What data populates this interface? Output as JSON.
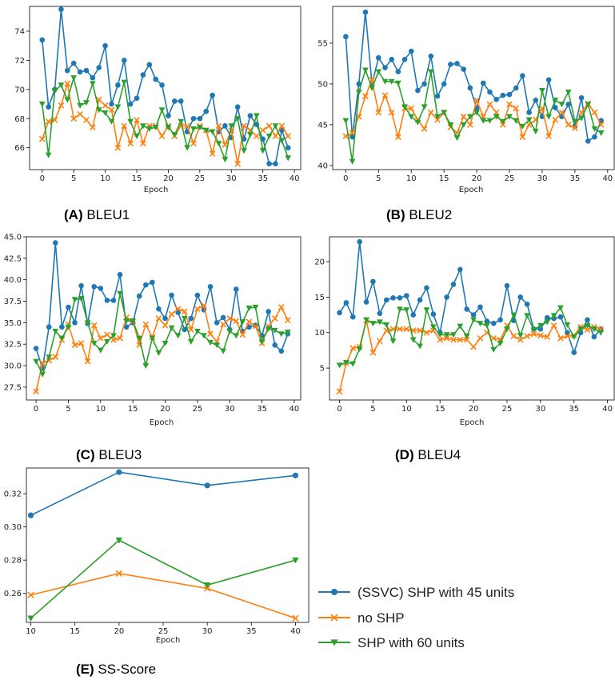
{
  "colors": {
    "ssvc": "#1f77b4",
    "noshp": "#ff7f0e",
    "shp60": "#2ca02c"
  },
  "legend": [
    {
      "label": "(SSVC) SHP with 45 units",
      "color": "#1f77b4",
      "marker": "circle"
    },
    {
      "label": "no SHP",
      "color": "#ff7f0e",
      "marker": "x"
    },
    {
      "label": "SHP with 60 units",
      "color": "#2ca02c",
      "marker": "triangle-down"
    }
  ],
  "chart_data": [
    {
      "type": "line",
      "panel": "(A)",
      "caption": "BLEU1",
      "xlabel": "Epoch",
      "ylabel": "",
      "xlim": [
        -2,
        41
      ],
      "ylim": [
        64.5,
        75.7
      ],
      "xticks": [
        0,
        5,
        10,
        15,
        20,
        25,
        30,
        35,
        40
      ],
      "yticks": [
        66,
        68,
        70,
        72,
        74
      ],
      "x": [
        0,
        1,
        2,
        3,
        4,
        5,
        6,
        7,
        8,
        9,
        10,
        11,
        12,
        13,
        14,
        15,
        16,
        17,
        18,
        19,
        20,
        21,
        22,
        23,
        24,
        25,
        26,
        27,
        28,
        29,
        30,
        31,
        32,
        33,
        34,
        35,
        36,
        37,
        38,
        39
      ],
      "series": [
        {
          "name": "(SSVC) SHP with 45 units",
          "marker": "circle",
          "values": [
            73.4,
            68.8,
            70,
            75.5,
            71.3,
            71.8,
            71.2,
            71.3,
            70.8,
            71.5,
            73,
            69,
            70.3,
            72,
            69,
            69.4,
            71,
            71.7,
            70.7,
            70.3,
            68.2,
            69.2,
            69.2,
            67.1,
            68,
            68,
            68.5,
            69.6,
            67.1,
            67.5,
            66.7,
            68.8,
            66.6,
            68.2,
            67.6,
            66.6,
            64.9,
            64.9,
            67.2,
            66
          ]
        },
        {
          "name": "no SHP",
          "marker": "x",
          "values": [
            66.6,
            67.8,
            67.9,
            68.9,
            70.4,
            68,
            68.3,
            67.9,
            67.4,
            69.3,
            68.9,
            68.6,
            66,
            67.5,
            66.3,
            67.9,
            66.3,
            67.5,
            67.5,
            66.8,
            67.5,
            66.8,
            67.5,
            67.5,
            66.3,
            67.5,
            67.2,
            65.6,
            67.5,
            66.2,
            67.2,
            64.9,
            67.5,
            67.2,
            66.8,
            67.2,
            67.5,
            66.8,
            67.5,
            66.8
          ]
        },
        {
          "name": "SHP with 60 units",
          "marker": "triangle-down",
          "values": [
            69,
            65.5,
            69.9,
            70.3,
            69.3,
            70.8,
            68.9,
            69.1,
            70.4,
            68.6,
            68.4,
            67.8,
            68.8,
            70.5,
            67.8,
            66.8,
            67.5,
            67.3,
            67.4,
            68.6,
            67.4,
            66.9,
            67.8,
            66,
            67.3,
            67.4,
            67.2,
            67.1,
            66.3,
            65.2,
            67.5,
            68,
            65.8,
            66.9,
            68.2,
            65.8,
            66.8,
            67.5,
            66.5,
            65.3
          ]
        }
      ]
    },
    {
      "type": "line",
      "panel": "(B)",
      "caption": "BLEU2",
      "xlabel": "Epoch",
      "ylabel": "",
      "xlim": [
        -2,
        41
      ],
      "ylim": [
        39.5,
        59.5
      ],
      "xticks": [
        0,
        5,
        10,
        15,
        20,
        25,
        30,
        35,
        40
      ],
      "yticks": [
        40,
        45,
        50,
        55
      ],
      "x": [
        0,
        1,
        2,
        3,
        4,
        5,
        6,
        7,
        8,
        9,
        10,
        11,
        12,
        13,
        14,
        15,
        16,
        17,
        18,
        19,
        20,
        21,
        22,
        23,
        24,
        25,
        26,
        27,
        28,
        29,
        30,
        31,
        32,
        33,
        34,
        35,
        36,
        37,
        38,
        39
      ],
      "series": [
        {
          "name": "(SSVC) SHP with 45 units",
          "marker": "circle",
          "values": [
            55.8,
            43.5,
            50,
            58.8,
            50,
            53.2,
            52,
            53,
            51.5,
            53,
            54,
            49.2,
            50,
            53.4,
            48.5,
            50,
            52.4,
            52.5,
            51.8,
            49.5,
            47,
            50.1,
            49,
            48.1,
            48.6,
            48.7,
            49.5,
            51,
            46.5,
            48,
            46,
            50.5,
            47.1,
            46,
            47.5,
            44.8,
            48.3,
            43,
            43.5,
            45.5
          ]
        },
        {
          "name": "no SHP",
          "marker": "x",
          "values": [
            43.6,
            44,
            46,
            48.5,
            50.5,
            46.5,
            48.6,
            46.5,
            43.5,
            47,
            47,
            45.6,
            44.5,
            46.5,
            45.6,
            46.5,
            44.7,
            44,
            46,
            45,
            48,
            46,
            47.5,
            46.5,
            45,
            47.5,
            47,
            43.5,
            45,
            45.6,
            47,
            43.6,
            45.6,
            46.5,
            45,
            44.6,
            46.5,
            47.6,
            46.5,
            45
          ]
        },
        {
          "name": "SHP with 60 units",
          "marker": "triangle-down",
          "values": [
            45.5,
            40.5,
            49,
            51.7,
            49.5,
            51.5,
            50.3,
            50.3,
            50.1,
            47.2,
            46,
            45.3,
            47.2,
            51.5,
            46,
            46.5,
            45,
            43.4,
            45,
            46,
            46.5,
            45.5,
            45.5,
            46,
            45.4,
            46,
            45.5,
            44.8,
            45.6,
            44.2,
            49.2,
            46,
            48,
            47.5,
            49,
            45.4,
            45.8,
            47.5,
            44.5,
            44
          ]
        }
      ]
    },
    {
      "type": "line",
      "panel": "(C)",
      "caption": "BLEU3",
      "xlabel": "Epoch",
      "ylabel": "",
      "xlim": [
        -1.5,
        41
      ],
      "ylim": [
        26,
        45
      ],
      "xticks": [
        0,
        5,
        10,
        15,
        20,
        25,
        30,
        35,
        40
      ],
      "yticks": [
        27.5,
        30.0,
        32.5,
        35.0,
        37.5,
        40.0,
        42.5,
        45.0
      ],
      "ytick_labels": [
        "27.5",
        "30.0",
        "32.5",
        "35.0",
        "37.5",
        "40.0",
        "42.5",
        "45.0"
      ],
      "x": [
        0,
        1,
        2,
        3,
        4,
        5,
        6,
        7,
        8,
        9,
        10,
        11,
        12,
        13,
        14,
        15,
        16,
        17,
        18,
        19,
        20,
        21,
        22,
        23,
        24,
        25,
        26,
        27,
        28,
        29,
        30,
        31,
        32,
        33,
        34,
        35,
        36,
        37,
        38,
        39
      ],
      "series": [
        {
          "name": "(SSVC) SHP with 45 units",
          "marker": "circle",
          "values": [
            32,
            29.7,
            34.5,
            44.3,
            34.5,
            36.8,
            35,
            39.3,
            34.9,
            39.2,
            39,
            37.6,
            37.6,
            40.6,
            34.5,
            35,
            38.1,
            39.4,
            39.7,
            36.6,
            35.5,
            38.2,
            36.2,
            34.2,
            35.5,
            38.2,
            36.5,
            39.2,
            35,
            35.6,
            34.2,
            38.9,
            34,
            34.5,
            34.7,
            33.5,
            36.3,
            32.4,
            31.7,
            33.7
          ]
        },
        {
          "name": "no SHP",
          "marker": "x",
          "values": [
            27,
            30.3,
            30.6,
            31,
            33,
            34.8,
            32.4,
            32.6,
            30.5,
            34.7,
            33.2,
            33.6,
            33,
            33.2,
            35.6,
            35.2,
            32.4,
            34.8,
            33.3,
            35.5,
            34.7,
            36,
            36.6,
            36.3,
            34.2,
            36.6,
            37,
            33.7,
            32.8,
            34.8,
            35.5,
            35.2,
            33.6,
            35.1,
            34.6,
            32.6,
            34.6,
            35.5,
            36.8,
            35.3
          ]
        },
        {
          "name": "SHP with 60 units",
          "marker": "triangle-down",
          "values": [
            30.5,
            29,
            31,
            34,
            33.2,
            34.5,
            37.7,
            37.8,
            35,
            32.6,
            31.8,
            32.8,
            33.5,
            38.4,
            35.2,
            35.2,
            33.2,
            30,
            33.2,
            31.5,
            32.6,
            34.4,
            33.5,
            35.5,
            32.8,
            34,
            33.5,
            32.7,
            32.4,
            31.7,
            34,
            33.5,
            35.1,
            36.7,
            36.8,
            32.8,
            34.3,
            34.1,
            33.7,
            33.9
          ]
        }
      ]
    },
    {
      "type": "line",
      "panel": "(D)",
      "caption": "BLEU4",
      "xlabel": "Epoch",
      "ylabel": "",
      "xlim": [
        -1.5,
        41
      ],
      "ylim": [
        0.5,
        23.5
      ],
      "xticks": [
        0,
        5,
        10,
        15,
        20,
        25,
        30,
        35,
        40
      ],
      "yticks": [
        5,
        10,
        15,
        20
      ],
      "x": [
        0,
        1,
        2,
        3,
        4,
        5,
        6,
        7,
        8,
        9,
        10,
        11,
        12,
        13,
        14,
        15,
        16,
        17,
        18,
        19,
        20,
        21,
        22,
        23,
        24,
        25,
        26,
        27,
        28,
        29,
        30,
        31,
        32,
        33,
        34,
        35,
        36,
        37,
        38,
        39
      ],
      "series": [
        {
          "name": "(SSVC) SHP with 45 units",
          "marker": "circle",
          "values": [
            12.8,
            14.2,
            12.2,
            22.8,
            14.3,
            17.2,
            12.7,
            14.6,
            14.9,
            14.9,
            15.2,
            12.5,
            14.6,
            16.3,
            12.6,
            10,
            15,
            16.8,
            18.9,
            13.3,
            12.5,
            13.6,
            11.6,
            11.3,
            11.8,
            16.6,
            11.7,
            15,
            14,
            10.5,
            10.5,
            12.1,
            12,
            12.2,
            10,
            7.2,
            10,
            11.8,
            9.4,
            10.5
          ]
        },
        {
          "name": "no SHP",
          "marker": "x",
          "values": [
            1.7,
            5.7,
            7.8,
            8,
            11.7,
            7.2,
            8.8,
            10.3,
            10.5,
            10.5,
            10.5,
            10.3,
            10.3,
            10,
            10.3,
            9,
            9.2,
            9,
            9,
            9,
            8,
            9.2,
            10,
            9.2,
            9,
            11,
            9.5,
            9,
            9.5,
            9.8,
            9.6,
            9.4,
            11,
            9.2,
            9.5,
            9.6,
            10.8,
            10.4,
            10.8,
            10.5
          ]
        },
        {
          "name": "SHP with 60 units",
          "marker": "triangle-down",
          "values": [
            5.4,
            5.8,
            5.6,
            7.7,
            11.8,
            11.3,
            11.5,
            11.1,
            8.8,
            13.3,
            13.2,
            9,
            8.1,
            13.2,
            10.8,
            9.7,
            9.7,
            9.7,
            10.9,
            9.5,
            11.8,
            11.3,
            11,
            7.6,
            8.5,
            10.5,
            12.5,
            9.6,
            12.4,
            10.4,
            11,
            11.5,
            12.4,
            13.5,
            11.1,
            9.4,
            10.5,
            11,
            10.5,
            10
          ]
        }
      ]
    },
    {
      "type": "line",
      "panel": "(E)",
      "caption": "SS-Score",
      "xlabel": "Epoch",
      "ylabel": "",
      "xlim": [
        9.5,
        41.5
      ],
      "ylim": [
        0.2425,
        0.3355
      ],
      "xticks": [
        10,
        15,
        20,
        25,
        30,
        35,
        40
      ],
      "yticks": [
        0.26,
        0.28,
        0.3,
        0.32
      ],
      "ytick_labels": [
        "0.26",
        "0.28",
        "0.30",
        "0.32"
      ],
      "x": [
        10,
        20,
        30,
        40
      ],
      "series": [
        {
          "name": "(SSVC) SHP with 45 units",
          "marker": "circle",
          "values": [
            0.307,
            0.333,
            0.325,
            0.331
          ]
        },
        {
          "name": "no SHP",
          "marker": "x",
          "values": [
            0.259,
            0.272,
            0.263,
            0.245
          ]
        },
        {
          "name": "SHP with 60 units",
          "marker": "triangle-down",
          "values": [
            0.245,
            0.292,
            0.265,
            0.28
          ]
        }
      ]
    }
  ]
}
